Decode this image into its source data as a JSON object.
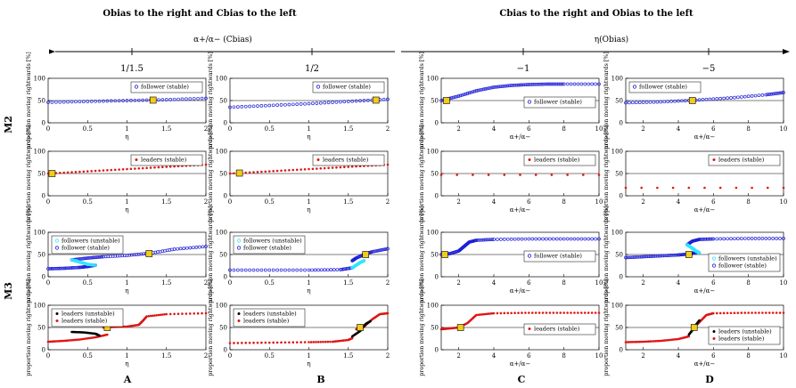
{
  "figure": {
    "group_titles": [
      "Obias to the right and Cbias to the left",
      "Cbias to the right and Obias to the left"
    ],
    "arrow_labels": [
      "α+/α− (Cbias)",
      "η(Obias)"
    ],
    "col_values": [
      "1/1.5",
      "1/2",
      "−1",
      "−5"
    ],
    "row_group_labels": [
      "M2",
      "M3"
    ],
    "col_letters": [
      "A",
      "B",
      "C",
      "D"
    ],
    "ylabel": "proportion moving rightwards [%]",
    "colors": {
      "follower_stable": "#1f1fd6",
      "follower_unstable": "#33e6ff",
      "leader_stable": "#e01515",
      "leader_unstable": "#000000",
      "marker": "#f2cc1a"
    }
  },
  "chart_data": [
    {
      "id": "A1",
      "type": "scatter",
      "xlabel": "η",
      "xlim": [
        0,
        2
      ],
      "ylim": [
        0,
        100
      ],
      "xticks": [
        "0",
        "0.5",
        "1",
        "1.5",
        "2"
      ],
      "yticks": [
        "0",
        "50",
        "100"
      ],
      "legend": [
        "follower (stable)"
      ],
      "legend_position": "top-right",
      "marker": [
        1.33,
        51
      ],
      "series": [
        {
          "name": "follower (stable)",
          "kind": "follower_stable",
          "x": [
            0,
            0.5,
            1,
            1.5,
            2
          ],
          "y": [
            46,
            48,
            50,
            52,
            55
          ]
        }
      ]
    },
    {
      "id": "B1",
      "type": "scatter",
      "xlabel": "η",
      "xlim": [
        0,
        2
      ],
      "ylim": [
        0,
        100
      ],
      "xticks": [
        "0",
        "0.5",
        "1",
        "1.5",
        "2"
      ],
      "yticks": [
        "0",
        "50",
        "100"
      ],
      "legend": [
        "follower (stable)"
      ],
      "legend_position": "top-right",
      "marker": [
        1.85,
        51
      ],
      "series": [
        {
          "name": "follower (stable)",
          "kind": "follower_stable",
          "x": [
            0,
            0.5,
            1,
            1.5,
            2
          ],
          "y": [
            35,
            39,
            43,
            48,
            53
          ]
        }
      ]
    },
    {
      "id": "C1",
      "type": "scatter",
      "xlabel": "α+/α−",
      "xlim": [
        1,
        10
      ],
      "ylim": [
        0,
        100
      ],
      "xticks": [
        "2",
        "4",
        "6",
        "8",
        "10"
      ],
      "yticks": [
        "0",
        "50",
        "100"
      ],
      "legend": [
        "follower (stable)"
      ],
      "legend_position": "center-right",
      "marker": [
        1.3,
        50
      ],
      "series": [
        {
          "name": "follower (stable)",
          "kind": "follower_stable",
          "x": [
            1,
            2,
            3,
            4,
            5,
            6,
            7,
            8,
            10
          ],
          "y": [
            50,
            60,
            72,
            80,
            84,
            86,
            87,
            87,
            87
          ]
        }
      ]
    },
    {
      "id": "D1",
      "type": "scatter",
      "xlabel": "α+/α−",
      "xlim": [
        1,
        10
      ],
      "ylim": [
        0,
        100
      ],
      "xticks": [
        "2",
        "4",
        "6",
        "8",
        "10"
      ],
      "yticks": [
        "0",
        "50",
        "100"
      ],
      "legend": [
        "follower (stable)"
      ],
      "legend_position": "top-left",
      "marker": [
        4.8,
        50
      ],
      "series": [
        {
          "name": "follower (stable)",
          "kind": "follower_stable",
          "x": [
            1,
            3,
            5,
            7,
            9,
            10
          ],
          "y": [
            45,
            47,
            51,
            56,
            63,
            68
          ]
        }
      ]
    },
    {
      "id": "A2",
      "type": "scatter",
      "xlabel": "η",
      "xlim": [
        0,
        2
      ],
      "ylim": [
        0,
        100
      ],
      "xticks": [
        "0",
        "0.5",
        "1",
        "1.5",
        "2"
      ],
      "yticks": [
        "0",
        "50",
        "100"
      ],
      "legend": [
        "leaders (stable)"
      ],
      "legend_position": "top-right",
      "marker": [
        0.05,
        50
      ],
      "series": [
        {
          "name": "leaders (stable)",
          "kind": "leader_stable",
          "x": [
            0,
            0.5,
            1,
            1.5,
            2
          ],
          "y": [
            50,
            55,
            60,
            65,
            70
          ]
        }
      ]
    },
    {
      "id": "B2",
      "type": "scatter",
      "xlabel": "η",
      "xlim": [
        0,
        2
      ],
      "ylim": [
        0,
        100
      ],
      "xticks": [
        "0",
        "0.5",
        "1",
        "1.5",
        "2"
      ],
      "yticks": [
        "0",
        "50",
        "100"
      ],
      "legend": [
        "leaders (stable)"
      ],
      "legend_position": "top-right",
      "marker": [
        0.12,
        51
      ],
      "series": [
        {
          "name": "leaders (stable)",
          "kind": "leader_stable",
          "x": [
            0,
            0.5,
            1,
            1.5,
            2
          ],
          "y": [
            50,
            55,
            60,
            65,
            70
          ]
        }
      ]
    },
    {
      "id": "C2",
      "type": "scatter",
      "xlabel": "α+/α−",
      "xlim": [
        1,
        10
      ],
      "ylim": [
        0,
        100
      ],
      "xticks": [
        "2",
        "4",
        "6",
        "8",
        "10"
      ],
      "yticks": [
        "0",
        "50",
        "100"
      ],
      "legend": [
        "leaders (stable)"
      ],
      "legend_position": "top-right",
      "marker": null,
      "series": [
        {
          "name": "leaders (stable)",
          "kind": "leader_stable",
          "x": [
            1,
            10
          ],
          "y": [
            47,
            47
          ]
        }
      ]
    },
    {
      "id": "D2",
      "type": "scatter",
      "xlabel": "α+/α−",
      "xlim": [
        1,
        10
      ],
      "ylim": [
        0,
        100
      ],
      "xticks": [
        "2",
        "4",
        "6",
        "8",
        "10"
      ],
      "yticks": [
        "0",
        "50",
        "100"
      ],
      "legend": [
        "leaders (stable)"
      ],
      "legend_position": "top-right",
      "marker": null,
      "series": [
        {
          "name": "leaders (stable)",
          "kind": "leader_stable",
          "x": [
            1,
            10
          ],
          "y": [
            18,
            18
          ]
        }
      ]
    },
    {
      "id": "A3",
      "type": "scatter",
      "xlabel": "η",
      "xlim": [
        0,
        2
      ],
      "ylim": [
        0,
        100
      ],
      "xticks": [
        "0",
        "0.5",
        "1",
        "1.5",
        "2"
      ],
      "yticks": [
        "0",
        "50",
        "100"
      ],
      "legend": [
        "followers (unstable)",
        "follower (stable)"
      ],
      "legend_position": "top-left",
      "marker": [
        1.28,
        52
      ],
      "series": [
        {
          "name": "follower (stable)",
          "kind": "follower_stable",
          "x": [
            0,
            0.2,
            0.4,
            0.5,
            0.6
          ],
          "y": [
            18,
            19,
            21,
            23,
            26
          ]
        },
        {
          "name": "follower (stable)",
          "kind": "follower_stable",
          "x": [
            0.3,
            0.5,
            0.7,
            1,
            1.3,
            1.6,
            2
          ],
          "y": [
            38,
            42,
            45,
            48,
            53,
            62,
            68
          ]
        },
        {
          "name": "followers (unstable)",
          "kind": "follower_unstable",
          "x": [
            0.3,
            0.4,
            0.5,
            0.6
          ],
          "y": [
            38,
            33,
            28,
            26
          ]
        }
      ]
    },
    {
      "id": "B3",
      "type": "scatter",
      "xlabel": "η",
      "xlim": [
        0,
        2
      ],
      "ylim": [
        0,
        100
      ],
      "xticks": [
        "0",
        "0.5",
        "1",
        "1.5",
        "2"
      ],
      "yticks": [
        "0",
        "50",
        "100"
      ],
      "legend": [
        "followers (unstable)",
        "follower (stable)"
      ],
      "legend_position": "top-left",
      "marker": [
        1.72,
        50
      ],
      "series": [
        {
          "name": "follower (stable)",
          "kind": "follower_stable",
          "x": [
            0,
            0.5,
            1,
            1.4,
            1.55
          ],
          "y": [
            15,
            15,
            15,
            16,
            20
          ]
        },
        {
          "name": "follower (stable)",
          "kind": "follower_stable",
          "x": [
            1.55,
            1.6,
            1.7,
            1.8,
            2
          ],
          "y": [
            36,
            42,
            50,
            56,
            63
          ]
        },
        {
          "name": "followers (unstable)",
          "kind": "follower_unstable",
          "x": [
            1.55,
            1.6,
            1.65,
            1.7
          ],
          "y": [
            20,
            26,
            32,
            36
          ]
        }
      ]
    },
    {
      "id": "C3",
      "type": "scatter",
      "xlabel": "α+/α−",
      "xlim": [
        1,
        10
      ],
      "ylim": [
        0,
        100
      ],
      "xticks": [
        "2",
        "4",
        "6",
        "8",
        "10"
      ],
      "yticks": [
        "0",
        "50",
        "100"
      ],
      "legend": [
        "follower (stable)"
      ],
      "legend_position": "center-right",
      "marker": [
        1.2,
        50
      ],
      "series": [
        {
          "name": "follower (stable)",
          "kind": "follower_stable",
          "x": [
            1,
            1.5,
            2,
            2.3,
            2.6,
            3,
            4,
            6,
            8,
            10
          ],
          "y": [
            50,
            52,
            58,
            68,
            78,
            82,
            84,
            85,
            85,
            85
          ]
        }
      ]
    },
    {
      "id": "D3",
      "type": "scatter",
      "xlabel": "α+/α−",
      "xlim": [
        1,
        10
      ],
      "ylim": [
        0,
        100
      ],
      "xticks": [
        "2",
        "4",
        "6",
        "8",
        "10"
      ],
      "yticks": [
        "0",
        "50",
        "100"
      ],
      "legend": [
        "followers (unstable)",
        "follower (stable)"
      ],
      "legend_position": "bottom-right",
      "marker": [
        4.6,
        50
      ],
      "series": [
        {
          "name": "follower (stable)",
          "kind": "follower_stable",
          "x": [
            1,
            2,
            3,
            4,
            4.6,
            5
          ],
          "y": [
            43,
            45,
            47,
            49,
            51,
            54
          ]
        },
        {
          "name": "follower (stable)",
          "kind": "follower_stable",
          "x": [
            4.5,
            4.8,
            5.2,
            6,
            8,
            10
          ],
          "y": [
            72,
            80,
            84,
            85,
            86,
            86
          ]
        },
        {
          "name": "followers (unstable)",
          "kind": "follower_unstable",
          "x": [
            4.5,
            4.8,
            5,
            5.2
          ],
          "y": [
            72,
            64,
            58,
            54
          ]
        }
      ]
    },
    {
      "id": "A4",
      "type": "scatter",
      "xlabel": "η",
      "xlim": [
        0,
        2
      ],
      "ylim": [
        0,
        100
      ],
      "xticks": [
        "0",
        "0.5",
        "1",
        "1.5",
        "2"
      ],
      "yticks": [
        "0",
        "50",
        "100"
      ],
      "legend": [
        "leaders (unstable)",
        "leaders (stable)"
      ],
      "legend_position": "top-left",
      "marker": [
        0.75,
        50
      ],
      "series": [
        {
          "name": "leaders (stable)",
          "kind": "leader_stable",
          "x": [
            0,
            0.2,
            0.4,
            0.6,
            0.75
          ],
          "y": [
            18,
            20,
            23,
            28,
            34
          ]
        },
        {
          "name": "leaders (stable)",
          "kind": "leader_stable",
          "x": [
            0.7,
            0.8,
            1,
            1.15,
            1.2,
            1.25,
            1.5,
            2
          ],
          "y": [
            50,
            51,
            52,
            56,
            65,
            75,
            80,
            82
          ]
        },
        {
          "name": "leaders (unstable)",
          "kind": "leader_unstable",
          "x": [
            0.3,
            0.45,
            0.6,
            0.65
          ],
          "y": [
            40,
            39,
            36,
            32
          ]
        }
      ]
    },
    {
      "id": "B4",
      "type": "scatter",
      "xlabel": "η",
      "xlim": [
        0,
        2
      ],
      "ylim": [
        0,
        100
      ],
      "xticks": [
        "0",
        "0.5",
        "1",
        "1.5",
        "2"
      ],
      "yticks": [
        "0",
        "50",
        "100"
      ],
      "legend": [
        "leaders (unstable)",
        "leaders (stable)"
      ],
      "legend_position": "top-left",
      "marker": [
        1.65,
        50
      ],
      "series": [
        {
          "name": "leaders (stable)",
          "kind": "leader_stable",
          "x": [
            0,
            0.5,
            1,
            1.3,
            1.5,
            1.55
          ],
          "y": [
            15,
            16,
            17,
            18,
            22,
            26
          ]
        },
        {
          "name": "leaders (stable)",
          "kind": "leader_stable",
          "x": [
            1.6,
            1.7,
            1.8,
            1.9,
            2
          ],
          "y": [
            46,
            52,
            68,
            80,
            82
          ]
        },
        {
          "name": "leaders (unstable)",
          "kind": "leader_unstable",
          "x": [
            1.55,
            1.65,
            1.72,
            1.78
          ],
          "y": [
            30,
            42,
            58,
            64
          ]
        }
      ]
    },
    {
      "id": "C4",
      "type": "scatter",
      "xlabel": "α+/α−",
      "xlim": [
        1,
        10
      ],
      "ylim": [
        0,
        100
      ],
      "xticks": [
        "2",
        "4",
        "6",
        "8",
        "10"
      ],
      "yticks": [
        "0",
        "50",
        "100"
      ],
      "legend": [
        "leaders (stable)"
      ],
      "legend_position": "center-right",
      "marker": [
        2.1,
        50
      ],
      "series": [
        {
          "name": "leaders (stable)",
          "kind": "leader_stable",
          "x": [
            1,
            1.5,
            2,
            2.5,
            3,
            4,
            6,
            8,
            10
          ],
          "y": [
            46,
            48,
            50,
            60,
            78,
            82,
            83,
            83,
            83
          ]
        }
      ]
    },
    {
      "id": "D4",
      "type": "scatter",
      "xlabel": "α+/α−",
      "xlim": [
        1,
        10
      ],
      "ylim": [
        0,
        100
      ],
      "xticks": [
        "2",
        "4",
        "6",
        "8",
        "10"
      ],
      "yticks": [
        "0",
        "50",
        "100"
      ],
      "legend": [
        "leaders (unstable)",
        "leaders (stable)"
      ],
      "legend_position": "bottom-right",
      "marker": [
        4.9,
        50
      ],
      "series": [
        {
          "name": "leaders (stable)",
          "kind": "leader_stable",
          "x": [
            1,
            2,
            3,
            4,
            4.6
          ],
          "y": [
            17,
            18,
            20,
            24,
            30
          ]
        },
        {
          "name": "leaders (stable)",
          "kind": "leader_stable",
          "x": [
            4.9,
            5.2,
            5.6,
            6,
            8,
            10
          ],
          "y": [
            50,
            62,
            78,
            82,
            83,
            83
          ]
        },
        {
          "name": "leaders (unstable)",
          "kind": "leader_unstable",
          "x": [
            4.6,
            4.8,
            5,
            5.2
          ],
          "y": [
            34,
            44,
            56,
            66
          ]
        }
      ]
    }
  ]
}
